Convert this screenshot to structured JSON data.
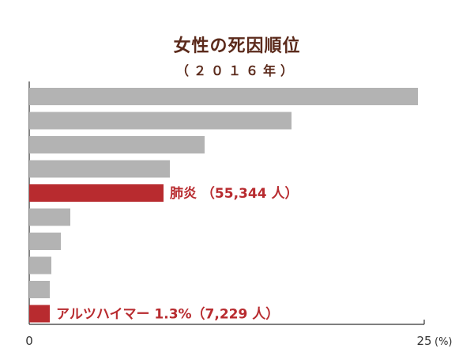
{
  "chart_data": {
    "type": "bar",
    "title": "女性の死因順位",
    "subtitle": "（２０１６年）",
    "orientation": "horizontal",
    "values": [
      24.6,
      16.6,
      11.1,
      8.9,
      8.5,
      2.6,
      2.0,
      1.4,
      1.3,
      1.3
    ],
    "highlight_indices": [
      4,
      9
    ],
    "highlight_labels": [
      {
        "index": 4,
        "label": "肺炎 （55,344 人）"
      },
      {
        "index": 9,
        "label": "アルツハイマー 1.3%（7,229 人）"
      }
    ],
    "xlim": [
      0,
      25
    ],
    "x_tick_labels": {
      "min": "0",
      "max": "25",
      "unit": "(%)"
    },
    "colors": {
      "bar": "#b3b3b3",
      "highlight": "#b82b2f",
      "axis": "#333333",
      "label_text": "#b82b2f",
      "title_text": "#5b2a1b"
    },
    "grid": false,
    "legend": "none"
  }
}
